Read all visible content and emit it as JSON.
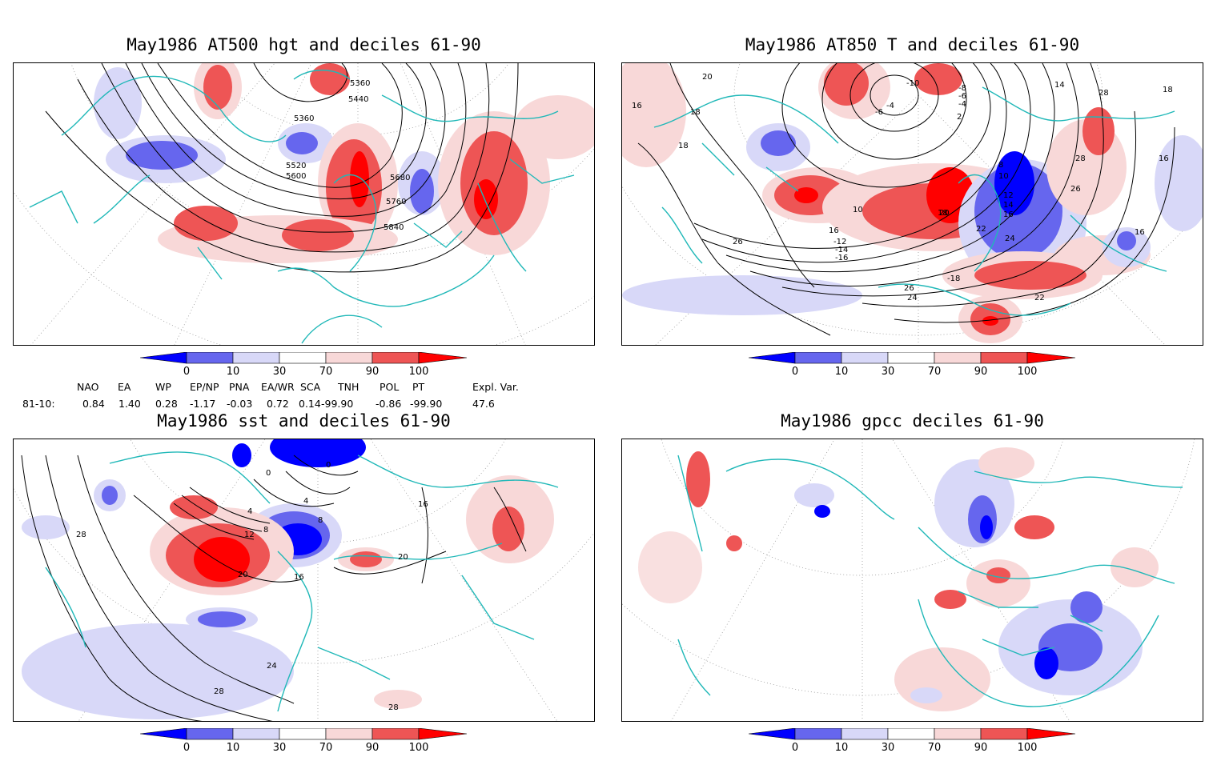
{
  "panels": [
    {
      "title": "May1986 AT500 hgt and deciles 61-90",
      "contour_labels": [
        "5360",
        "5440",
        "5360",
        "5520",
        "5600",
        "5680",
        "5760",
        "5840"
      ]
    },
    {
      "title": "May1986 AT850 T and deciles 61-90",
      "contour_labels": [
        "20",
        "16",
        "18",
        "18",
        "-10",
        "-8",
        "-6",
        "-4",
        "2",
        "14",
        "28",
        "18",
        "16",
        "28",
        "26",
        "-4",
        "-6",
        "10",
        "8",
        "10",
        "12",
        "14",
        "16",
        "18",
        "20",
        "22",
        "24",
        "26",
        "16",
        "16",
        "-12",
        "-14",
        "-16",
        "-18",
        "26",
        "24",
        "22",
        "20"
      ]
    },
    {
      "title": "May1986 sst and deciles 61-90",
      "contour_labels": [
        "0",
        "0",
        "4",
        "4",
        "8",
        "8",
        "12",
        "16",
        "20",
        "16",
        "20",
        "28",
        "24",
        "28",
        "28"
      ]
    },
    {
      "title": "May1986 gpcc deciles 61-90",
      "contour_labels": []
    }
  ],
  "colorbar": {
    "labels": [
      "0",
      "10",
      "30",
      "70",
      "90",
      "100"
    ],
    "colors": [
      "#0000ff",
      "#6666ee",
      "#d8d8f8",
      "#ffffff",
      "#f8d8d8",
      "#ee5555",
      "#ff0000"
    ]
  },
  "indices": {
    "headers": [
      "NAO",
      "EA",
      "WP",
      "EP/NP",
      "PNA",
      "EA/WR",
      "SCA",
      "TNH",
      "POL",
      "PT",
      "Expl. Var."
    ],
    "row_label": "81-10:",
    "values": [
      "0.84",
      "1.40",
      "0.28",
      "-1.17",
      "-0.03",
      "0.72",
      "0.14",
      "-99.90",
      "-0.86",
      "-99.90",
      "47.6"
    ]
  },
  "colors": {
    "coast": "#20b8b8",
    "warm": "#ee4444",
    "cold": "#4444ee"
  }
}
